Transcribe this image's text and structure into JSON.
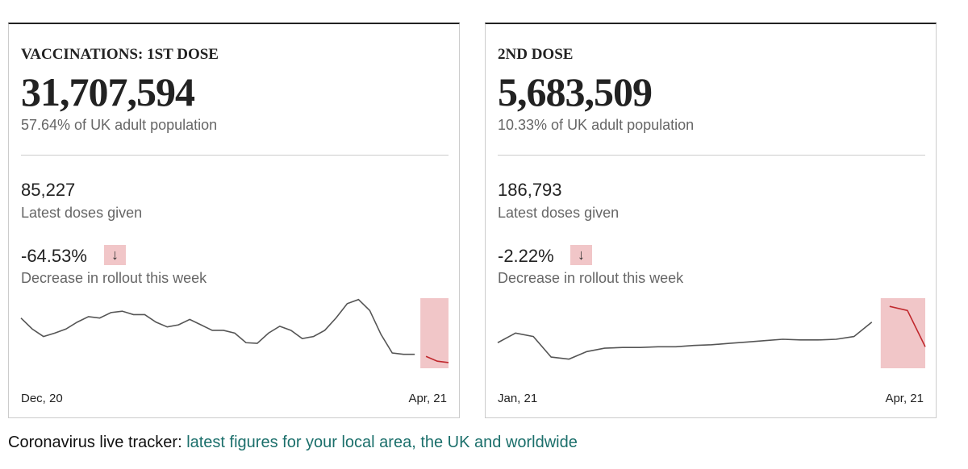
{
  "cards": [
    {
      "title": "VACCINATIONS: 1ST DOSE",
      "total": "31,707,594",
      "share": "57.64% of UK adult population",
      "latest": "85,227",
      "latest_label": "Latest doses given",
      "change": "-64.53%",
      "arrow": "↓",
      "change_label": "Decrease in rollout this week",
      "sparkline": {
        "type": "line",
        "values": [
          71,
          55,
          44,
          49,
          55,
          65,
          73,
          71,
          79,
          81,
          76,
          76,
          65,
          58,
          61,
          69,
          61,
          53,
          53,
          49,
          35,
          34,
          49,
          59,
          53,
          41,
          44,
          53,
          71,
          92,
          98,
          82,
          47,
          20,
          18,
          18,
          15,
          8,
          6
        ],
        "ylim": [
          0,
          100
        ],
        "highlight_last": 3,
        "color": "#555555",
        "highlight_color": "#c0282d"
      },
      "x_start": "Dec, 20",
      "x_end": "Apr, 21"
    },
    {
      "title": "2ND DOSE",
      "total": "5,683,509",
      "share": "10.33% of UK adult population",
      "latest": "186,793",
      "latest_label": "Latest doses given",
      "change": "-2.22%",
      "arrow": "↓",
      "change_label": "Decrease in rollout this week",
      "sparkline": {
        "type": "line",
        "values": [
          35,
          49,
          44,
          14,
          11,
          22,
          27,
          28,
          28,
          29,
          29,
          31,
          32,
          34,
          36,
          38,
          40,
          39,
          39,
          40,
          44,
          65,
          88,
          82,
          29
        ],
        "ylim": [
          0,
          100
        ],
        "highlight_last": 3,
        "color": "#555555",
        "highlight_color": "#c0282d"
      },
      "x_start": "Jan, 21",
      "x_end": "Apr, 21"
    }
  ],
  "footer": {
    "lead": "Coronavirus live tracker: ",
    "link": "latest figures for your local area, the UK and worldwide"
  }
}
